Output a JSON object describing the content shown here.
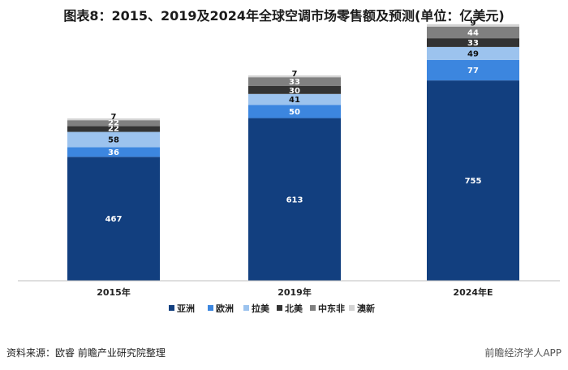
{
  "title": "图表8：2015、2019及2024年全球空调市场零售额及预测(单位：亿美元)",
  "source_text": "资料来源：欧睿 前瞻产业研究院整理",
  "brand_text": "前瞻经济学人APP",
  "colors": {
    "亚洲": "#123f7f",
    "欧洲": "#3c86df",
    "拉美": "#9cc3ee",
    "北美": "#333333",
    "中东非": "#808080",
    "澳新": "#d3d3d3"
  },
  "chart_data": {
    "type": "bar",
    "stacked": true,
    "categories": [
      "2015年",
      "2019年",
      "2024年E"
    ],
    "series": [
      {
        "name": "亚洲",
        "values": [
          467,
          613,
          755
        ]
      },
      {
        "name": "欧洲",
        "values": [
          36,
          50,
          77
        ]
      },
      {
        "name": "拉美",
        "values": [
          58,
          41,
          49
        ]
      },
      {
        "name": "北美",
        "values": [
          22,
          30,
          33
        ]
      },
      {
        "name": "中东非",
        "values": [
          22,
          33,
          44
        ]
      },
      {
        "name": "澳新",
        "values": [
          7,
          7,
          9
        ]
      }
    ],
    "legend_position": "bottom",
    "grid": false
  }
}
